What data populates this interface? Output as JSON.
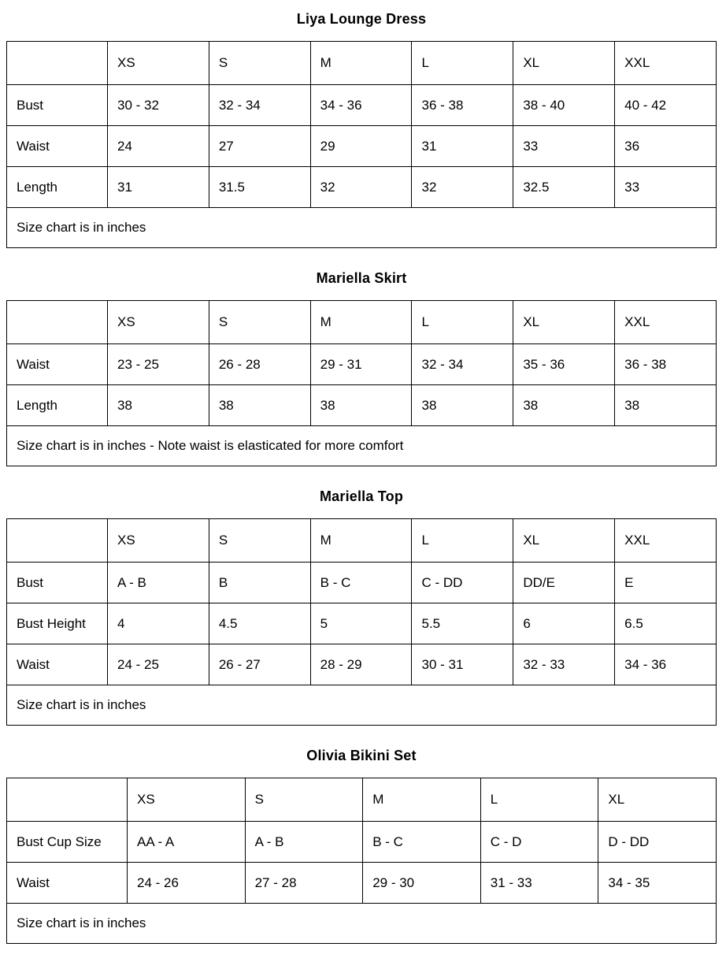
{
  "page": {
    "background": "#ffffff",
    "border_color": "#000000",
    "text_color": "#000000"
  },
  "tables": [
    {
      "title": "Liya Lounge Dress",
      "columns": [
        "",
        "XS",
        "S",
        "M",
        "L",
        "XL",
        "XXL"
      ],
      "rows": [
        {
          "label": "Bust",
          "values": [
            "30 - 32",
            "32 - 34",
            "34 - 36",
            "36 - 38",
            "38 - 40",
            "40 - 42"
          ]
        },
        {
          "label": "Waist",
          "values": [
            "24",
            "27",
            "29",
            "31",
            "33",
            "36"
          ]
        },
        {
          "label": "Length",
          "values": [
            "31",
            "31.5",
            "32",
            "32",
            "32.5",
            "33"
          ]
        }
      ],
      "footer": "Size chart is in inches"
    },
    {
      "title": "Mariella Skirt",
      "columns": [
        "",
        "XS",
        "S",
        "M",
        "L",
        "XL",
        "XXL"
      ],
      "rows": [
        {
          "label": "Waist",
          "values": [
            "23 - 25",
            "26 - 28",
            "29 - 31",
            "32 - 34",
            "35 - 36",
            "36 - 38"
          ]
        },
        {
          "label": "Length",
          "values": [
            "38",
            "38",
            "38",
            "38",
            "38",
            "38"
          ]
        }
      ],
      "footer": "Size chart is in inches - Note waist is elasticated for more comfort"
    },
    {
      "title": "Mariella Top",
      "columns": [
        "",
        "XS",
        "S",
        "M",
        "L",
        "XL",
        "XXL"
      ],
      "rows": [
        {
          "label": "Bust",
          "values": [
            "A - B",
            "B",
            "B - C",
            "C - DD",
            "DD/E",
            "E"
          ]
        },
        {
          "label": "Bust Height",
          "values": [
            "4",
            "4.5",
            "5",
            "5.5",
            "6",
            "6.5"
          ]
        },
        {
          "label": "Waist",
          "values": [
            "24 - 25",
            "26 - 27",
            "28 - 29",
            "30 - 31",
            "32 - 33",
            "34 - 36"
          ]
        }
      ],
      "footer": "Size chart is in inches"
    },
    {
      "title": "Olivia Bikini Set",
      "columns": [
        "",
        "XS",
        "S",
        "M",
        "L",
        "XL"
      ],
      "rows": [
        {
          "label": "Bust Cup Size",
          "values": [
            "AA - A",
            "A - B",
            "B - C",
            "C - D",
            "D - DD"
          ]
        },
        {
          "label": "Waist",
          "values": [
            "24 - 26",
            "27 - 28",
            "29 - 30",
            "31 - 33",
            "34 - 35"
          ]
        }
      ],
      "footer": "Size chart is in inches"
    }
  ]
}
